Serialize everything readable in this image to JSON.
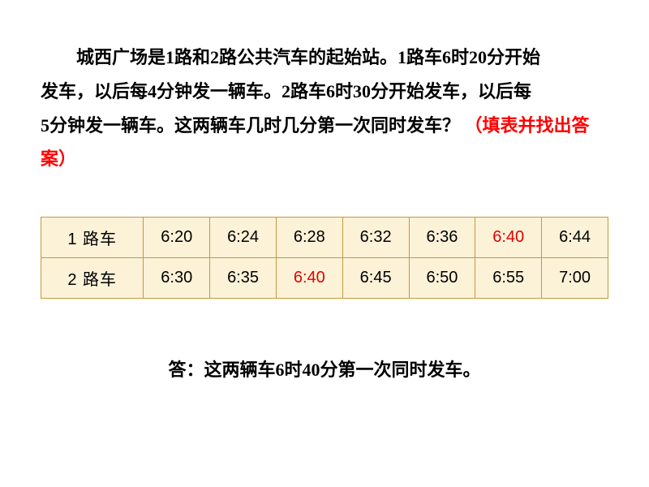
{
  "problem": {
    "line1_pre": "城西广场是1路和2路公共汽车的起始站。1路车6时20分开始",
    "line2": "发车，以后每4分钟发一辆车。2路车6时30分开始发车，以后每",
    "line3": "5分钟发一辆车。这两辆车几时几分第一次同时发车？",
    "hint": "（填表并找出答案）"
  },
  "table": {
    "row1_label": "1 路车",
    "row2_label": "2 路车",
    "row1": [
      "6:20",
      "6:24",
      "6:28",
      "6:32",
      "6:36",
      "6:40",
      "6:44"
    ],
    "row2": [
      "6:30",
      "6:35",
      "6:40",
      "6:45",
      "6:50",
      "6:55",
      "7:00"
    ],
    "row1_highlight_index": 5,
    "row2_highlight_index": 2,
    "bg_color": "#fcf2d8",
    "border_color": "#c29a3a",
    "highlight_color": "#e30000",
    "text_color": "#000000",
    "cell_fontsize": 20
  },
  "answer": "答：这两辆车6时40分第一次同时发车。",
  "colors": {
    "page_bg": "#ffffff",
    "body_text": "#000000",
    "hint_text": "#ff0000"
  },
  "typography": {
    "body_fontsize": 22,
    "body_lineheight": 1.9
  }
}
